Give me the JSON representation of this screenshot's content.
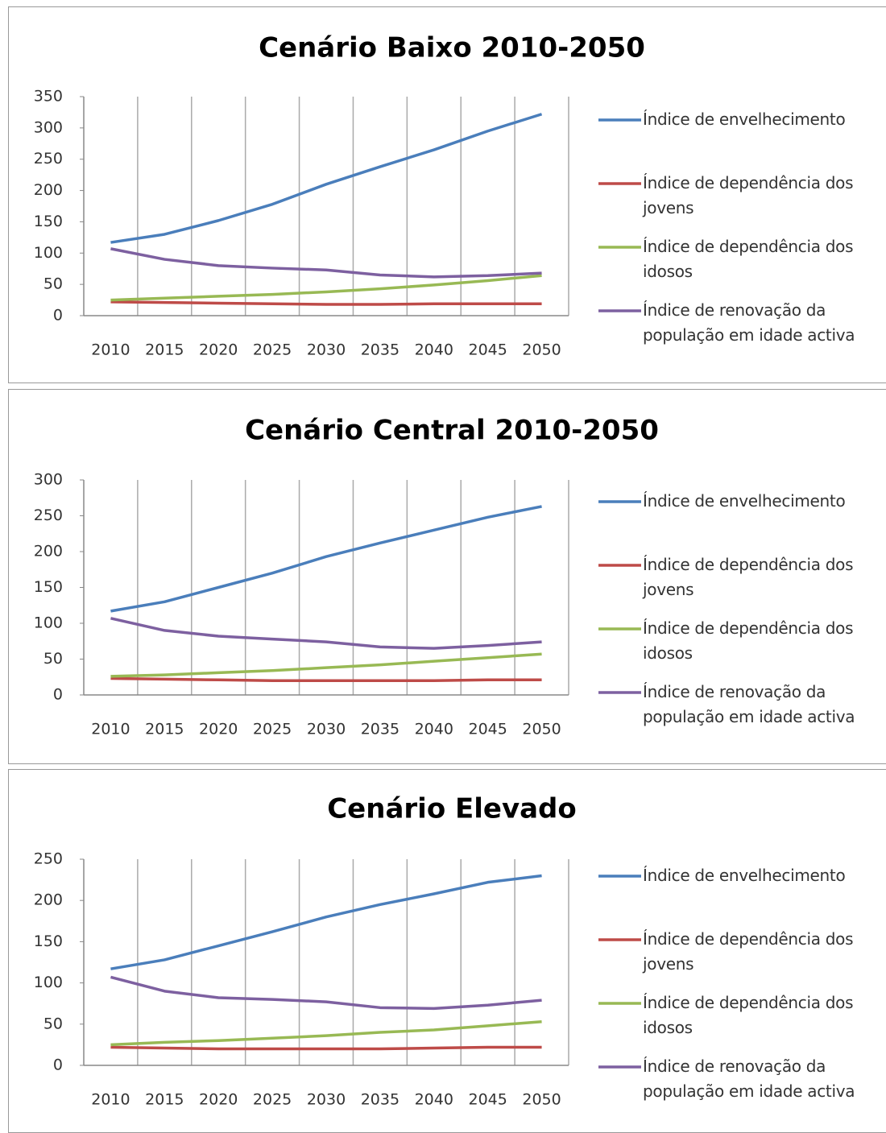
{
  "chart_data": [
    {
      "type": "line",
      "title": "Cenário Baixo 2010-2050",
      "categories": [
        "2010",
        "2015",
        "2020",
        "2025",
        "2030",
        "2035",
        "2040",
        "2045",
        "2050"
      ],
      "ylim": [
        0,
        350
      ],
      "yticks": [
        0,
        50,
        100,
        150,
        200,
        250,
        300,
        350
      ],
      "legend": "right",
      "series": [
        {
          "name": "Índice de envelhecimento",
          "color": "#4a7ebb",
          "values": [
            117,
            130,
            152,
            178,
            210,
            238,
            265,
            295,
            322
          ]
        },
        {
          "name": "Índice de dependência dos jovens",
          "color": "#be4b48",
          "values": [
            22,
            21,
            20,
            19,
            18,
            18,
            19,
            19,
            19
          ]
        },
        {
          "name": "Índice de dependência dos idosos",
          "color": "#98b954",
          "values": [
            25,
            28,
            31,
            34,
            38,
            43,
            49,
            56,
            64
          ]
        },
        {
          "name": "Índice de renovação da população em idade activa",
          "color": "#7d60a0",
          "values": [
            107,
            90,
            80,
            76,
            73,
            65,
            62,
            64,
            68
          ]
        }
      ]
    },
    {
      "type": "line",
      "title": "Cenário Central 2010-2050",
      "categories": [
        "2010",
        "2015",
        "2020",
        "2025",
        "2030",
        "2035",
        "2040",
        "2045",
        "2050"
      ],
      "ylim": [
        0,
        300
      ],
      "yticks": [
        0,
        50,
        100,
        150,
        200,
        250,
        300
      ],
      "legend": "right",
      "series": [
        {
          "name": "Índice de envelhecimento",
          "color": "#4a7ebb",
          "values": [
            117,
            130,
            150,
            170,
            193,
            212,
            230,
            248,
            263
          ]
        },
        {
          "name": "Índice de dependência dos jovens",
          "color": "#be4b48",
          "values": [
            23,
            22,
            21,
            20,
            20,
            20,
            20,
            21,
            21
          ]
        },
        {
          "name": "Índice de dependência dos idosos",
          "color": "#98b954",
          "values": [
            26,
            28,
            31,
            34,
            38,
            42,
            47,
            52,
            57
          ]
        },
        {
          "name": "Índice de renovação da população em idade activa",
          "color": "#7d60a0",
          "values": [
            107,
            90,
            82,
            78,
            74,
            67,
            65,
            69,
            74
          ]
        }
      ]
    },
    {
      "type": "line",
      "title": "Cenário Elevado",
      "categories": [
        "2010",
        "2015",
        "2020",
        "2025",
        "2030",
        "2035",
        "2040",
        "2045",
        "2050"
      ],
      "ylim": [
        0,
        250
      ],
      "yticks": [
        0,
        50,
        100,
        150,
        200,
        250
      ],
      "legend": "right",
      "series": [
        {
          "name": "Índice de envelhecimento",
          "color": "#4a7ebb",
          "values": [
            117,
            128,
            145,
            162,
            180,
            195,
            208,
            222,
            230
          ]
        },
        {
          "name": "Índice de dependência dos jovens",
          "color": "#be4b48",
          "values": [
            22,
            21,
            20,
            20,
            20,
            20,
            21,
            22,
            22
          ]
        },
        {
          "name": "Índice de dependência dos idosos",
          "color": "#98b954",
          "values": [
            25,
            28,
            30,
            33,
            36,
            40,
            43,
            48,
            53
          ]
        },
        {
          "name": "Índice de renovação da população em idade activa",
          "color": "#7d60a0",
          "values": [
            107,
            90,
            82,
            80,
            77,
            70,
            69,
            73,
            79
          ]
        }
      ]
    }
  ]
}
